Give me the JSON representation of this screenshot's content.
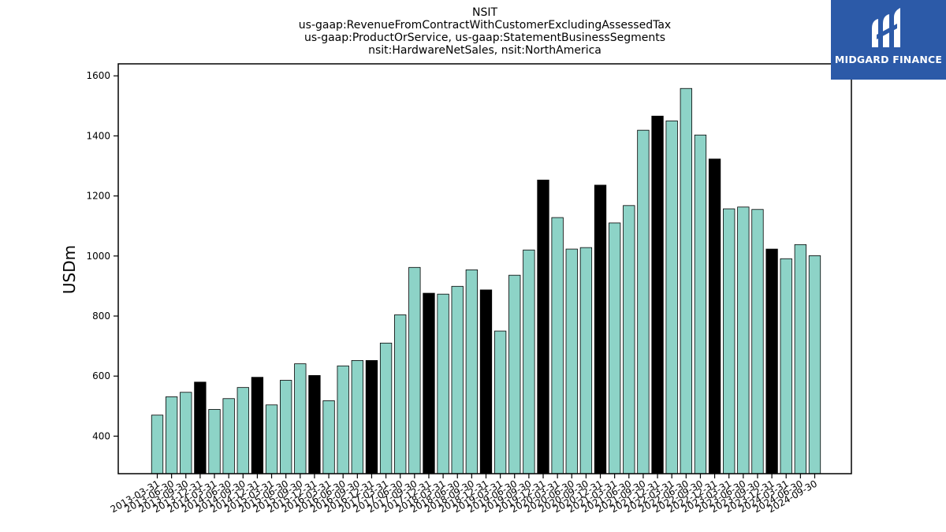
{
  "chart_data": {
    "type": "bar",
    "title_lines": [
      "NSIT",
      "us-gaap:RevenueFromContractWithCustomerExcludingAssessedTax",
      "us-gaap:ProductOrService, us-gaap:StatementBusinessSegments",
      "nsit:HardwareNetSales, nsit:NorthAmerica"
    ],
    "ylabel": "USDm",
    "xlabel": "",
    "ylim": [
      275,
      1640
    ],
    "yticks": [
      400,
      600,
      800,
      1000,
      1200,
      1400,
      1600
    ],
    "categories": [
      "2013-03-31",
      "2013-06-30",
      "2013-09-30",
      "2013-12-31",
      "2014-03-31",
      "2014-06-30",
      "2014-09-30",
      "2014-12-31",
      "2015-03-31",
      "2015-06-30",
      "2015-09-30",
      "2015-12-31",
      "2016-03-31",
      "2016-06-30",
      "2016-09-30",
      "2016-12-31",
      "2017-03-31",
      "2017-06-30",
      "2017-09-30",
      "2017-12-31",
      "2018-03-31",
      "2018-06-30",
      "2018-09-30",
      "2018-12-31",
      "2019-03-31",
      "2019-06-30",
      "2019-09-30",
      "2019-12-31",
      "2020-03-31",
      "2020-06-30",
      "2020-09-30",
      "2020-12-31",
      "2021-03-31",
      "2021-06-30",
      "2021-09-30",
      "2021-12-31",
      "2022-03-31",
      "2022-06-30",
      "2022-09-30",
      "2022-12-31",
      "2023-03-31",
      "2023-06-30",
      "2023-09-30",
      "2023-12-31",
      "2024-03-31",
      "2024-06-30",
      "2024-09-30"
    ],
    "values": [
      470,
      531,
      546,
      580,
      489,
      525,
      562,
      596,
      504,
      586,
      641,
      602,
      518,
      634,
      652,
      652,
      710,
      804,
      962,
      876,
      873,
      899,
      954,
      887,
      750,
      936,
      1020,
      1253,
      1128,
      1023,
      1028,
      1236,
      1110,
      1168,
      1419,
      1466,
      1450,
      1558,
      1403,
      1323,
      1157,
      1163,
      1155,
      1023,
      991,
      1038,
      1001
    ],
    "highlight": [
      false,
      false,
      false,
      true,
      false,
      false,
      false,
      true,
      false,
      false,
      false,
      true,
      false,
      false,
      false,
      true,
      false,
      false,
      false,
      true,
      false,
      false,
      false,
      true,
      false,
      false,
      false,
      true,
      false,
      false,
      false,
      true,
      false,
      false,
      false,
      true,
      false,
      false,
      false,
      true,
      false,
      false,
      false,
      true,
      false,
      false,
      false
    ],
    "colors": {
      "bar": "#8dd3c7",
      "highlight_bar": "#000000",
      "edge": "#000000"
    },
    "grid": false,
    "legend": "none"
  },
  "logo": {
    "text": "MIDGARD FINANCE",
    "background": "#2c5aa8"
  }
}
